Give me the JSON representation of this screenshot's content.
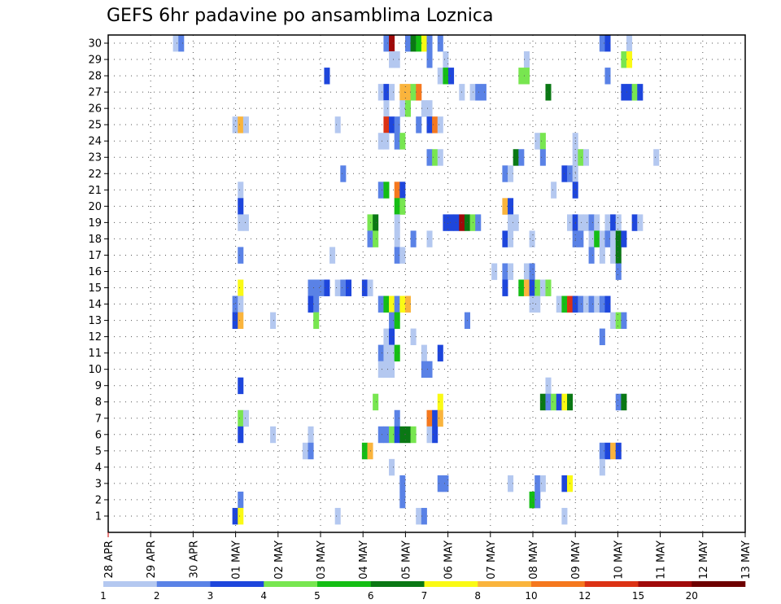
{
  "chart_data": {
    "type": "heatmap",
    "title": "GEFS 6hr padavine po ansamblima Loznica",
    "xlabel": "",
    "ylabel": "",
    "x_tick_labels": [
      "28 APR",
      "29 APR",
      "30 APR",
      "01 MAY",
      "02 MAY",
      "03 MAY",
      "04 MAY",
      "05 MAY",
      "06 MAY",
      "07 MAY",
      "08 MAY",
      "09 MAY",
      "10 MAY",
      "11 MAY",
      "12 MAY",
      "13 MAY"
    ],
    "x_steps_per_day": 4,
    "x_step_hours": 6,
    "ylim": [
      0,
      30
    ],
    "y_ticks": [
      1,
      2,
      3,
      4,
      5,
      6,
      7,
      8,
      9,
      10,
      11,
      12,
      13,
      14,
      15,
      16,
      17,
      18,
      19,
      20,
      21,
      22,
      23,
      24,
      25,
      26,
      27,
      28,
      29,
      30
    ],
    "grid": true,
    "colorbar": {
      "levels": [
        1,
        2,
        3,
        4,
        5,
        6,
        7,
        8,
        10,
        12,
        15,
        20
      ],
      "colors": [
        "#b4c8f0",
        "#5a82e6",
        "#1e46dc",
        "#78e650",
        "#14be14",
        "#0a7814",
        "#fafa14",
        "#fab43c",
        "#f5781e",
        "#dc3214",
        "#a00a0a",
        "#6e0000"
      ]
    },
    "cells": [
      [
        30,
        12,
        0
      ],
      [
        30,
        13,
        1
      ],
      [
        30,
        51,
        1
      ],
      [
        30,
        52,
        10
      ],
      [
        30,
        55,
        1
      ],
      [
        30,
        56,
        5
      ],
      [
        30,
        57,
        4
      ],
      [
        30,
        58,
        6
      ],
      [
        30,
        59,
        1
      ],
      [
        30,
        61,
        1
      ],
      [
        30,
        91,
        1
      ],
      [
        30,
        92,
        2
      ],
      [
        30,
        96,
        0
      ],
      [
        29,
        52,
        0
      ],
      [
        29,
        53,
        0
      ],
      [
        29,
        59,
        1
      ],
      [
        29,
        62,
        0
      ],
      [
        29,
        77,
        0
      ],
      [
        29,
        95,
        3
      ],
      [
        29,
        96,
        6
      ],
      [
        28,
        40,
        2
      ],
      [
        28,
        61,
        0
      ],
      [
        28,
        62,
        4
      ],
      [
        28,
        63,
        2
      ],
      [
        28,
        76,
        3
      ],
      [
        28,
        77,
        3
      ],
      [
        28,
        92,
        1
      ],
      [
        27,
        50,
        0
      ],
      [
        27,
        51,
        2
      ],
      [
        27,
        52,
        0
      ],
      [
        27,
        54,
        7
      ],
      [
        27,
        55,
        7
      ],
      [
        27,
        56,
        3
      ],
      [
        27,
        57,
        8
      ],
      [
        27,
        65,
        0
      ],
      [
        27,
        67,
        0
      ],
      [
        27,
        68,
        1
      ],
      [
        27,
        69,
        1
      ],
      [
        27,
        81,
        5
      ],
      [
        27,
        95,
        2
      ],
      [
        27,
        96,
        2
      ],
      [
        27,
        97,
        3
      ],
      [
        27,
        98,
        2
      ],
      [
        26,
        51,
        0
      ],
      [
        26,
        54,
        0
      ],
      [
        26,
        55,
        3
      ],
      [
        26,
        58,
        0
      ],
      [
        26,
        59,
        0
      ],
      [
        25,
        23,
        0
      ],
      [
        25,
        24,
        7
      ],
      [
        25,
        25,
        0
      ],
      [
        25,
        42,
        0
      ],
      [
        25,
        51,
        9
      ],
      [
        25,
        52,
        2
      ],
      [
        25,
        53,
        1
      ],
      [
        25,
        57,
        1
      ],
      [
        25,
        59,
        2
      ],
      [
        25,
        60,
        8
      ],
      [
        25,
        61,
        0
      ],
      [
        24,
        50,
        0
      ],
      [
        24,
        51,
        0
      ],
      [
        24,
        53,
        1
      ],
      [
        24,
        54,
        3
      ],
      [
        24,
        79,
        0
      ],
      [
        24,
        80,
        3
      ],
      [
        24,
        86,
        0
      ],
      [
        23,
        59,
        1
      ],
      [
        23,
        60,
        3
      ],
      [
        23,
        61,
        0
      ],
      [
        23,
        75,
        5
      ],
      [
        23,
        76,
        1
      ],
      [
        23,
        80,
        1
      ],
      [
        23,
        86,
        0
      ],
      [
        23,
        87,
        3
      ],
      [
        23,
        88,
        0
      ],
      [
        23,
        101,
        0
      ],
      [
        22,
        43,
        1
      ],
      [
        22,
        73,
        1
      ],
      [
        22,
        74,
        0
      ],
      [
        22,
        84,
        2
      ],
      [
        22,
        85,
        1
      ],
      [
        22,
        86,
        0
      ],
      [
        21,
        24,
        0
      ],
      [
        21,
        50,
        1
      ],
      [
        21,
        51,
        4
      ],
      [
        21,
        53,
        8
      ],
      [
        21,
        54,
        2
      ],
      [
        21,
        82,
        0
      ],
      [
        21,
        86,
        2
      ],
      [
        20,
        24,
        2
      ],
      [
        20,
        53,
        4
      ],
      [
        20,
        54,
        3
      ],
      [
        20,
        73,
        7
      ],
      [
        20,
        74,
        2
      ],
      [
        19,
        24,
        0
      ],
      [
        19,
        25,
        0
      ],
      [
        19,
        48,
        3
      ],
      [
        19,
        49,
        5
      ],
      [
        19,
        53,
        0
      ],
      [
        19,
        62,
        2
      ],
      [
        19,
        63,
        2
      ],
      [
        19,
        64,
        2
      ],
      [
        19,
        65,
        10
      ],
      [
        19,
        66,
        5
      ],
      [
        19,
        67,
        3
      ],
      [
        19,
        68,
        1
      ],
      [
        19,
        74,
        0
      ],
      [
        19,
        75,
        0
      ],
      [
        19,
        85,
        0
      ],
      [
        19,
        86,
        2
      ],
      [
        19,
        87,
        0
      ],
      [
        19,
        88,
        0
      ],
      [
        19,
        89,
        1
      ],
      [
        19,
        90,
        0
      ],
      [
        19,
        92,
        0
      ],
      [
        19,
        93,
        2
      ],
      [
        19,
        94,
        0
      ],
      [
        19,
        97,
        2
      ],
      [
        19,
        98,
        0
      ],
      [
        18,
        48,
        1
      ],
      [
        18,
        49,
        3
      ],
      [
        18,
        53,
        0
      ],
      [
        18,
        56,
        1
      ],
      [
        18,
        59,
        0
      ],
      [
        18,
        73,
        2
      ],
      [
        18,
        74,
        0
      ],
      [
        18,
        78,
        0
      ],
      [
        18,
        86,
        1
      ],
      [
        18,
        87,
        1
      ],
      [
        18,
        89,
        0
      ],
      [
        18,
        90,
        4
      ],
      [
        18,
        91,
        0
      ],
      [
        18,
        92,
        1
      ],
      [
        18,
        93,
        0
      ],
      [
        18,
        94,
        5
      ],
      [
        18,
        95,
        2
      ],
      [
        17,
        24,
        1
      ],
      [
        17,
        41,
        0
      ],
      [
        17,
        53,
        1
      ],
      [
        17,
        54,
        0
      ],
      [
        17,
        89,
        1
      ],
      [
        17,
        91,
        0
      ],
      [
        17,
        93,
        0
      ],
      [
        17,
        94,
        5
      ],
      [
        16,
        71,
        0
      ],
      [
        16,
        73,
        1
      ],
      [
        16,
        74,
        0
      ],
      [
        16,
        77,
        0
      ],
      [
        16,
        78,
        1
      ],
      [
        16,
        94,
        1
      ],
      [
        15,
        24,
        6
      ],
      [
        15,
        37,
        1
      ],
      [
        15,
        38,
        1
      ],
      [
        15,
        39,
        1
      ],
      [
        15,
        40,
        2
      ],
      [
        15,
        42,
        0
      ],
      [
        15,
        43,
        1
      ],
      [
        15,
        44,
        2
      ],
      [
        15,
        47,
        2
      ],
      [
        15,
        48,
        0
      ],
      [
        15,
        73,
        2
      ],
      [
        15,
        76,
        4
      ],
      [
        15,
        77,
        7
      ],
      [
        15,
        78,
        2
      ],
      [
        15,
        79,
        3
      ],
      [
        15,
        80,
        0
      ],
      [
        15,
        81,
        3
      ],
      [
        14,
        23,
        1
      ],
      [
        14,
        24,
        0
      ],
      [
        14,
        37,
        2
      ],
      [
        14,
        38,
        1
      ],
      [
        14,
        50,
        1
      ],
      [
        14,
        51,
        4
      ],
      [
        14,
        52,
        6
      ],
      [
        14,
        53,
        1
      ],
      [
        14,
        54,
        6
      ],
      [
        14,
        55,
        7
      ],
      [
        14,
        78,
        0
      ],
      [
        14,
        79,
        0
      ],
      [
        14,
        83,
        0
      ],
      [
        14,
        84,
        4
      ],
      [
        14,
        85,
        9
      ],
      [
        14,
        86,
        2
      ],
      [
        14,
        87,
        1
      ],
      [
        14,
        88,
        0
      ],
      [
        14,
        89,
        1
      ],
      [
        14,
        90,
        0
      ],
      [
        14,
        91,
        1
      ],
      [
        14,
        92,
        2
      ],
      [
        13,
        23,
        2
      ],
      [
        13,
        24,
        7
      ],
      [
        13,
        30,
        0
      ],
      [
        13,
        38,
        3
      ],
      [
        13,
        52,
        1
      ],
      [
        13,
        53,
        4
      ],
      [
        13,
        66,
        1
      ],
      [
        13,
        93,
        0
      ],
      [
        13,
        94,
        3
      ],
      [
        13,
        95,
        1
      ],
      [
        12,
        51,
        0
      ],
      [
        12,
        52,
        2
      ],
      [
        12,
        56,
        0
      ],
      [
        12,
        91,
        1
      ],
      [
        11,
        50,
        1
      ],
      [
        11,
        51,
        0
      ],
      [
        11,
        52,
        0
      ],
      [
        11,
        53,
        4
      ],
      [
        11,
        58,
        0
      ],
      [
        11,
        61,
        2
      ],
      [
        10,
        50,
        0
      ],
      [
        10,
        51,
        0
      ],
      [
        10,
        52,
        0
      ],
      [
        10,
        58,
        1
      ],
      [
        10,
        59,
        1
      ],
      [
        9,
        24,
        2
      ],
      [
        9,
        81,
        0
      ],
      [
        8,
        49,
        3
      ],
      [
        8,
        61,
        6
      ],
      [
        8,
        80,
        5
      ],
      [
        8,
        81,
        1
      ],
      [
        8,
        82,
        3
      ],
      [
        8,
        83,
        2
      ],
      [
        8,
        84,
        6
      ],
      [
        8,
        85,
        5
      ],
      [
        8,
        94,
        1
      ],
      [
        8,
        95,
        5
      ],
      [
        7,
        24,
        3
      ],
      [
        7,
        25,
        0
      ],
      [
        7,
        53,
        1
      ],
      [
        7,
        59,
        8
      ],
      [
        7,
        60,
        2
      ],
      [
        7,
        61,
        7
      ],
      [
        6,
        24,
        2
      ],
      [
        6,
        30,
        0
      ],
      [
        6,
        37,
        0
      ],
      [
        6,
        50,
        1
      ],
      [
        6,
        51,
        1
      ],
      [
        6,
        52,
        3
      ],
      [
        6,
        53,
        2
      ],
      [
        6,
        54,
        5
      ],
      [
        6,
        55,
        5
      ],
      [
        6,
        56,
        3
      ],
      [
        6,
        59,
        0
      ],
      [
        6,
        60,
        2
      ],
      [
        5,
        36,
        0
      ],
      [
        5,
        37,
        1
      ],
      [
        5,
        47,
        4
      ],
      [
        5,
        48,
        7
      ],
      [
        5,
        91,
        1
      ],
      [
        5,
        92,
        2
      ],
      [
        5,
        93,
        7
      ],
      [
        5,
        94,
        2
      ],
      [
        4,
        52,
        0
      ],
      [
        4,
        91,
        0
      ],
      [
        3,
        54,
        1
      ],
      [
        3,
        61,
        1
      ],
      [
        3,
        62,
        1
      ],
      [
        3,
        74,
        0
      ],
      [
        3,
        79,
        1
      ],
      [
        3,
        80,
        0
      ],
      [
        3,
        84,
        2
      ],
      [
        3,
        85,
        6
      ],
      [
        2,
        24,
        1
      ],
      [
        2,
        54,
        1
      ],
      [
        2,
        78,
        4
      ],
      [
        2,
        79,
        1
      ],
      [
        1,
        23,
        2
      ],
      [
        1,
        24,
        6
      ],
      [
        1,
        42,
        0
      ],
      [
        1,
        57,
        0
      ],
      [
        1,
        58,
        1
      ],
      [
        1,
        84,
        0
      ]
    ]
  }
}
